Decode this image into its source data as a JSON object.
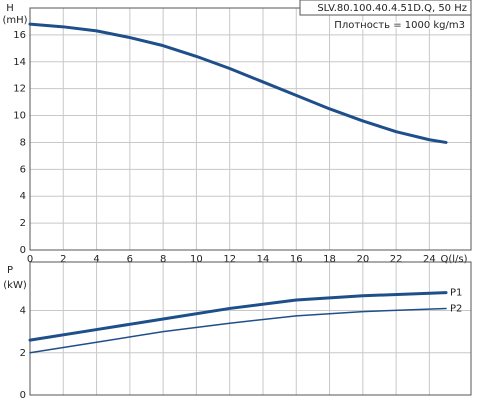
{
  "chart_data": [
    {
      "type": "line",
      "title": "SLV.80.100.40.4.51D.Q, 50 Hz",
      "subtitle": "Плотность = 1000 kg/m3",
      "ylabel": "H",
      "yunit": "(mH)",
      "xlabel": "Q(l/s)",
      "xlim": [
        0,
        26.5
      ],
      "xticks": [
        0,
        2,
        4,
        6,
        8,
        10,
        12,
        14,
        16,
        18,
        20,
        22,
        24
      ],
      "ylim": [
        0,
        18
      ],
      "yticks": [
        0,
        2,
        4,
        6,
        8,
        10,
        12,
        14,
        16
      ],
      "grid": true,
      "x": [
        0,
        2,
        4,
        6,
        8,
        10,
        12,
        14,
        16,
        18,
        20,
        22,
        24,
        25
      ],
      "series": [
        {
          "color": "#1f4f8a",
          "values": [
            16.8,
            16.6,
            16.3,
            15.8,
            15.2,
            14.4,
            13.5,
            12.5,
            11.5,
            10.5,
            9.6,
            8.8,
            8.2,
            8.0
          ]
        }
      ]
    },
    {
      "type": "line",
      "ylabel": "P",
      "yunit": "(kW)",
      "xlim": [
        0,
        26.5
      ],
      "xticks": [
        0,
        2,
        4,
        6,
        8,
        10,
        12,
        14,
        16,
        18,
        20,
        22,
        24
      ],
      "ylim": [
        0,
        6.3
      ],
      "yticks": [
        0,
        2,
        4
      ],
      "grid": true,
      "x": [
        0,
        4,
        8,
        12,
        16,
        20,
        25
      ],
      "series": [
        {
          "name": "P1",
          "color": "#1f4f8a",
          "values": [
            2.6,
            3.1,
            3.6,
            4.1,
            4.5,
            4.7,
            4.85
          ]
        },
        {
          "name": "P2",
          "color": "#1f4f8a",
          "values": [
            2.0,
            2.5,
            3.0,
            3.4,
            3.75,
            3.95,
            4.1
          ]
        }
      ]
    }
  ]
}
